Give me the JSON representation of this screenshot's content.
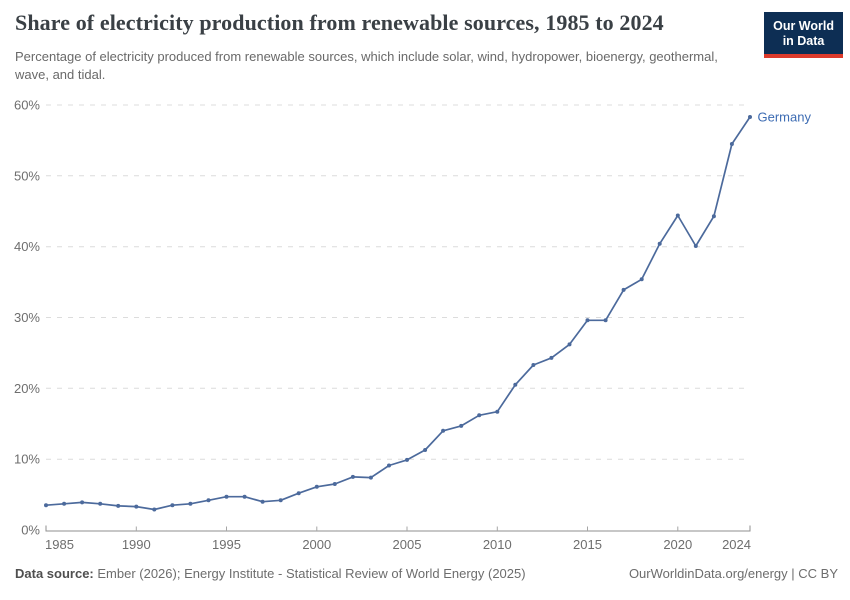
{
  "branding": {
    "logo_line1": "Our World",
    "logo_line2": "in Data",
    "logo_bg_color": "#0d2e54",
    "logo_accent_color": "#dc3a2b"
  },
  "header": {
    "title": "Share of electricity production from renewable sources, 1985 to 2024",
    "subtitle": "Percentage of electricity produced from renewable sources, which include solar, wind, hydropower, bioenergy, geothermal, wave, and tidal."
  },
  "chart_data": {
    "type": "line",
    "title": "Share of electricity production from renewable sources, 1985 to 2024",
    "x": [
      1985,
      1986,
      1987,
      1988,
      1989,
      1990,
      1991,
      1992,
      1993,
      1994,
      1995,
      1996,
      1997,
      1998,
      1999,
      2000,
      2001,
      2002,
      2003,
      2004,
      2005,
      2006,
      2007,
      2008,
      2009,
      2010,
      2011,
      2012,
      2013,
      2014,
      2015,
      2016,
      2017,
      2018,
      2019,
      2020,
      2021,
      2022,
      2023,
      2024
    ],
    "series": [
      {
        "name": "Germany",
        "color": "#4c6a9c",
        "label_color": "#3d6cb3",
        "values": [
          3.5,
          3.7,
          3.9,
          3.7,
          3.4,
          3.3,
          2.9,
          3.5,
          3.7,
          4.2,
          4.7,
          4.7,
          4.0,
          4.2,
          5.2,
          6.1,
          6.5,
          7.5,
          7.4,
          9.1,
          9.9,
          11.3,
          14.0,
          14.7,
          16.2,
          16.7,
          20.5,
          23.3,
          24.3,
          26.2,
          29.6,
          29.6,
          33.9,
          35.4,
          40.4,
          44.4,
          40.1,
          44.3,
          54.5,
          58.3
        ]
      }
    ],
    "xlabel": "",
    "ylabel": "",
    "ylim": [
      0,
      60
    ],
    "yticks": [
      0,
      10,
      20,
      30,
      40,
      50,
      60
    ],
    "ytick_suffix": "%",
    "xticks": [
      1985,
      1990,
      1995,
      2000,
      2005,
      2010,
      2015,
      2020,
      2024
    ],
    "grid": "horizontal-dashed",
    "legend": "line-end-label",
    "grid_color": "#dcdcdc",
    "axis_color": "#8f8f8f",
    "tick_label_color": "#6e6e6e"
  },
  "footer": {
    "source_label": "Data source:",
    "source_text": " Ember (2026); Energy Institute - Statistical Review of World Energy (2025)",
    "credit_text": "OurWorldinData.org/energy | CC BY"
  }
}
